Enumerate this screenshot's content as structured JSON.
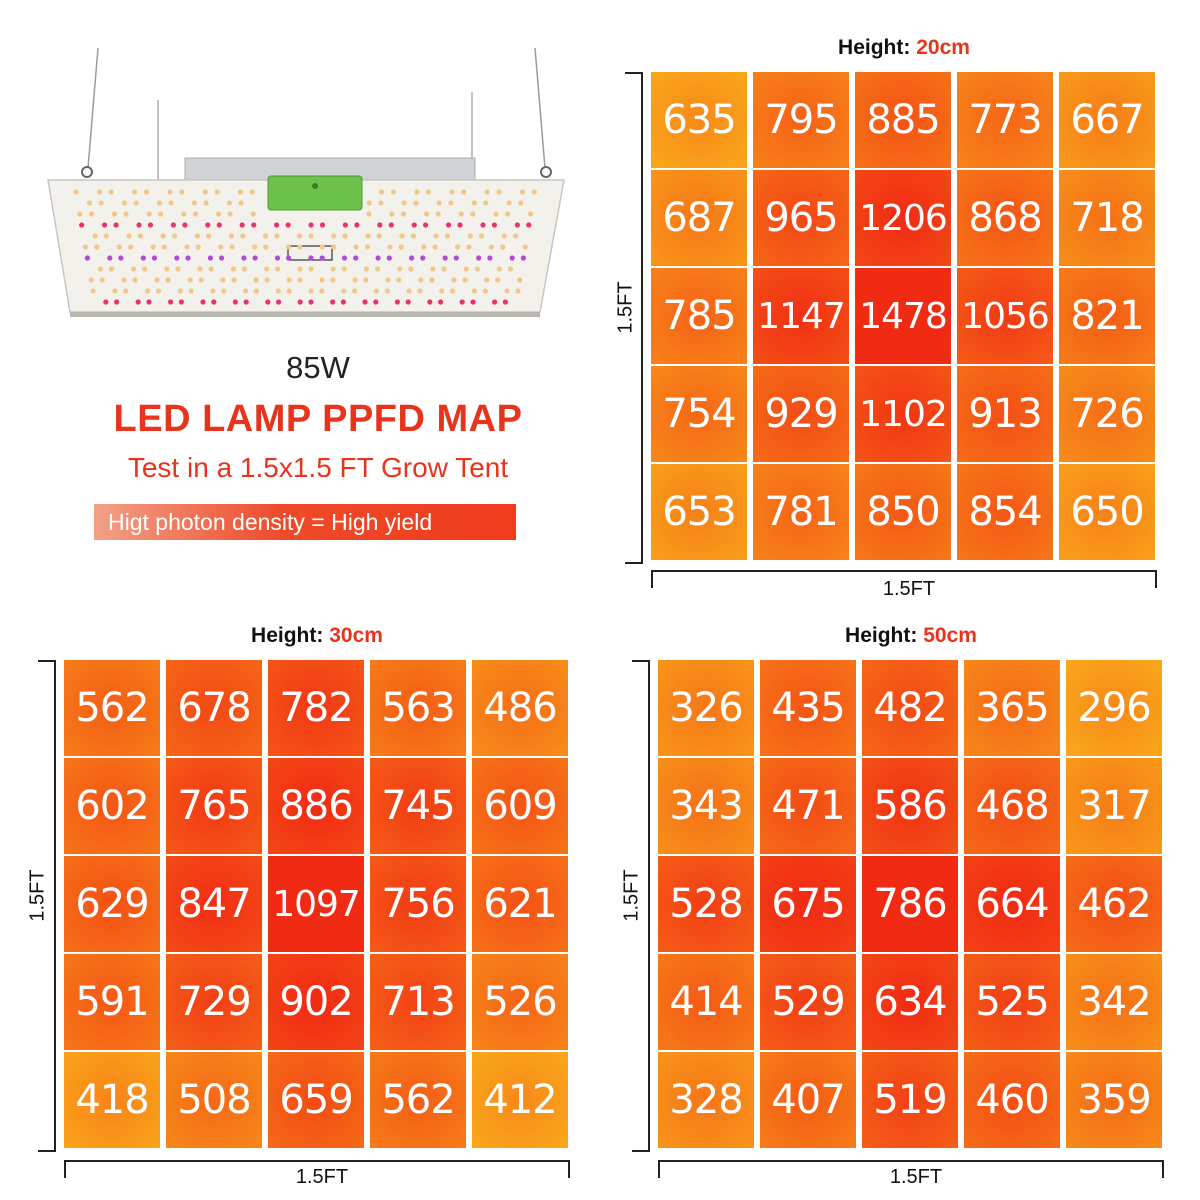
{
  "wattage": "85W",
  "title": "LED LAMP PPFD MAP",
  "subtitle": "Test in a 1.5x1.5 FT Grow Tent",
  "tagline": "Higt photon density = High yield",
  "colors": {
    "accent": "#e8341c",
    "low": "#f9a81a",
    "high": "#f12a14"
  },
  "chart_data": [
    {
      "type": "heatmap",
      "title_label": "Height:",
      "title_value": "20cm",
      "xlabel": "1.5FT",
      "ylabel": "1.5FT",
      "values": [
        [
          635,
          795,
          885,
          773,
          667
        ],
        [
          687,
          965,
          1206,
          868,
          718
        ],
        [
          785,
          1147,
          1478,
          1056,
          821
        ],
        [
          754,
          929,
          1102,
          913,
          726
        ],
        [
          653,
          781,
          850,
          854,
          650
        ]
      ]
    },
    {
      "type": "heatmap",
      "title_label": "Height:",
      "title_value": "30cm",
      "xlabel": "1.5FT",
      "ylabel": "1.5FT",
      "values": [
        [
          562,
          678,
          782,
          563,
          486
        ],
        [
          602,
          765,
          886,
          745,
          609
        ],
        [
          629,
          847,
          1097,
          756,
          621
        ],
        [
          591,
          729,
          902,
          713,
          526
        ],
        [
          418,
          508,
          659,
          562,
          412
        ]
      ]
    },
    {
      "type": "heatmap",
      "title_label": "Height:",
      "title_value": "50cm",
      "xlabel": "1.5FT",
      "ylabel": "1.5FT",
      "values": [
        [
          326,
          435,
          482,
          365,
          296
        ],
        [
          343,
          471,
          586,
          468,
          317
        ],
        [
          528,
          675,
          786,
          664,
          462
        ],
        [
          414,
          529,
          634,
          525,
          342
        ],
        [
          328,
          407,
          519,
          460,
          359
        ]
      ]
    }
  ]
}
